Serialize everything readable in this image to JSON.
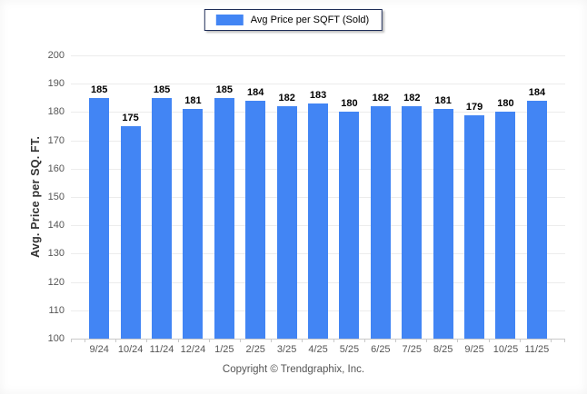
{
  "legend": {
    "label": "Avg Price per SQFT (Sold)",
    "swatch_color": "#4285f4"
  },
  "chart_data": {
    "type": "bar",
    "title": "",
    "series_name": "Avg Price per SQFT (Sold)",
    "categories": [
      "9/24",
      "10/24",
      "11/24",
      "12/24",
      "1/25",
      "2/25",
      "3/25",
      "4/25",
      "5/25",
      "6/25",
      "7/25",
      "8/25",
      "9/25",
      "10/25",
      "11/25"
    ],
    "values": [
      185,
      175,
      185,
      181,
      185,
      184,
      182,
      183,
      180,
      182,
      182,
      181,
      179,
      180,
      184
    ],
    "xlabel": "",
    "ylabel": "Avg. Price per SQ. FT.",
    "ylim": [
      100,
      200
    ],
    "ytick_step": 10,
    "grid": "horizontal",
    "legend_position": "top-center",
    "value_labels": true
  },
  "footer": {
    "copyright": "Copyright © Trendgraphix, Inc."
  },
  "colors": {
    "bar": "#4285f4",
    "grid": "#ececec",
    "axis_line": "#c9c9c9",
    "tick_text": "#555555",
    "value_text": "#000000",
    "legend_border": "#1e2d58",
    "y_title_text": "#333333"
  }
}
